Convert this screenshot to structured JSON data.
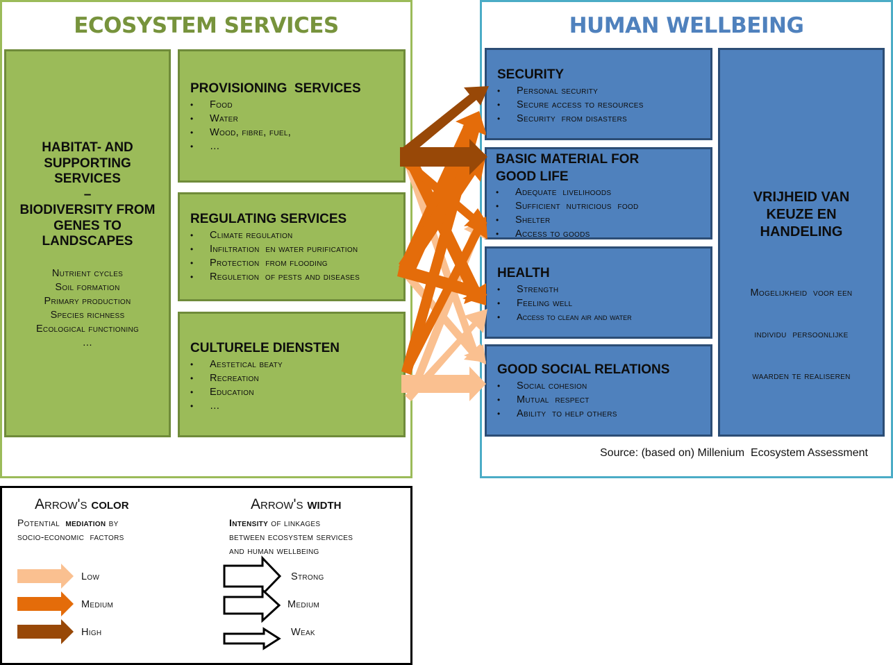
{
  "ecosystem": {
    "title": "ECOSYSTEM SERVICES",
    "habitat": {
      "title_lines": [
        "HABITAT- AND",
        "SUPPORTING",
        "SERVICES",
        "–",
        "BIODIVERSITY FROM",
        "GENES TO",
        "LANDSCAPES"
      ],
      "items": [
        "Nutrient cycles",
        "Soil formation",
        "Primary production",
        "Species richness",
        "Ecological functioning",
        "…"
      ]
    },
    "provisioning": {
      "title": "PROVISIONING  SERVICES",
      "items": [
        "Food",
        "Water",
        "Wood, fibre, fuel,",
        "…"
      ]
    },
    "regulating": {
      "title": "REGULATING SERVICES",
      "items": [
        "Climate regulation",
        "Infiltration  en water purification",
        "Protection  from flooding",
        "Reguletion  of pests and diseases"
      ]
    },
    "cultural": {
      "title": "CULTURELE DIENSTEN",
      "items": [
        "Aestetical beaty",
        "Recreation",
        "Education",
        "…"
      ]
    }
  },
  "wellbeing": {
    "title": "HUMAN WELLBEING",
    "security": {
      "title": "SECURITY",
      "items": [
        "Personal security",
        "Secure access to resources",
        "Security  from disasters"
      ]
    },
    "material": {
      "title_lines": [
        "BASIC MATERIAL FOR",
        "GOOD LIFE"
      ],
      "items": [
        "Adequate  livelihoods",
        "Sufficient  nutricious  food",
        "Shelter",
        "Access to goods"
      ]
    },
    "health": {
      "title": "HEALTH",
      "items": [
        "Strength",
        "Feeling well",
        "Access to clean air and water"
      ]
    },
    "social": {
      "title": "GOOD SOCIAL RELATIONS",
      "items": [
        "Social cohesion",
        "Mutual  respect",
        "Ability  to help others"
      ]
    },
    "freedom": {
      "title_lines": [
        "VRIJHEID VAN",
        "KEUZE EN",
        "HANDELING"
      ],
      "desc_lines": [
        "Mogelijkheid  voor een",
        "individu  persoonlijke",
        "waarden te realiseren"
      ]
    },
    "source": "Source: (based on) Millenium  Ecosystem Assessment"
  },
  "legend": {
    "color_head_plain": "Arrow's ",
    "color_head_bold": "color",
    "color_sub_lines": [
      {
        "plain_before": "Potential  ",
        "bold": "mediation",
        "plain_after": " by"
      },
      {
        "plain_before": "socio-economic  factors",
        "bold": "",
        "plain_after": ""
      }
    ],
    "width_head_plain": "Arrow's ",
    "width_head_bold": "width",
    "width_sub_lines": [
      {
        "plain_before": "",
        "bold": "Intensity",
        "plain_after": " of linkages"
      },
      {
        "plain_before": "between ecosystem services",
        "bold": "",
        "plain_after": ""
      },
      {
        "plain_before": "and human wellbeing",
        "bold": "",
        "plain_after": ""
      }
    ],
    "color_items": [
      {
        "label": "Low",
        "color": "#fac090"
      },
      {
        "label": "Medium",
        "color": "#e46c0a"
      },
      {
        "label": "High",
        "color": "#984807"
      }
    ],
    "width_items": [
      {
        "label": "Strong",
        "level": "strong"
      },
      {
        "label": "Medium",
        "level": "medium"
      },
      {
        "label": "Weak",
        "level": "weak"
      }
    ]
  },
  "colors": {
    "green_frame": "#9bbb59",
    "blue_frame": "#4bacc6",
    "green_title": "#77933c",
    "blue_title": "#4f81bd",
    "low": "#fac090",
    "medium": "#e46c0a",
    "high": "#984807"
  }
}
